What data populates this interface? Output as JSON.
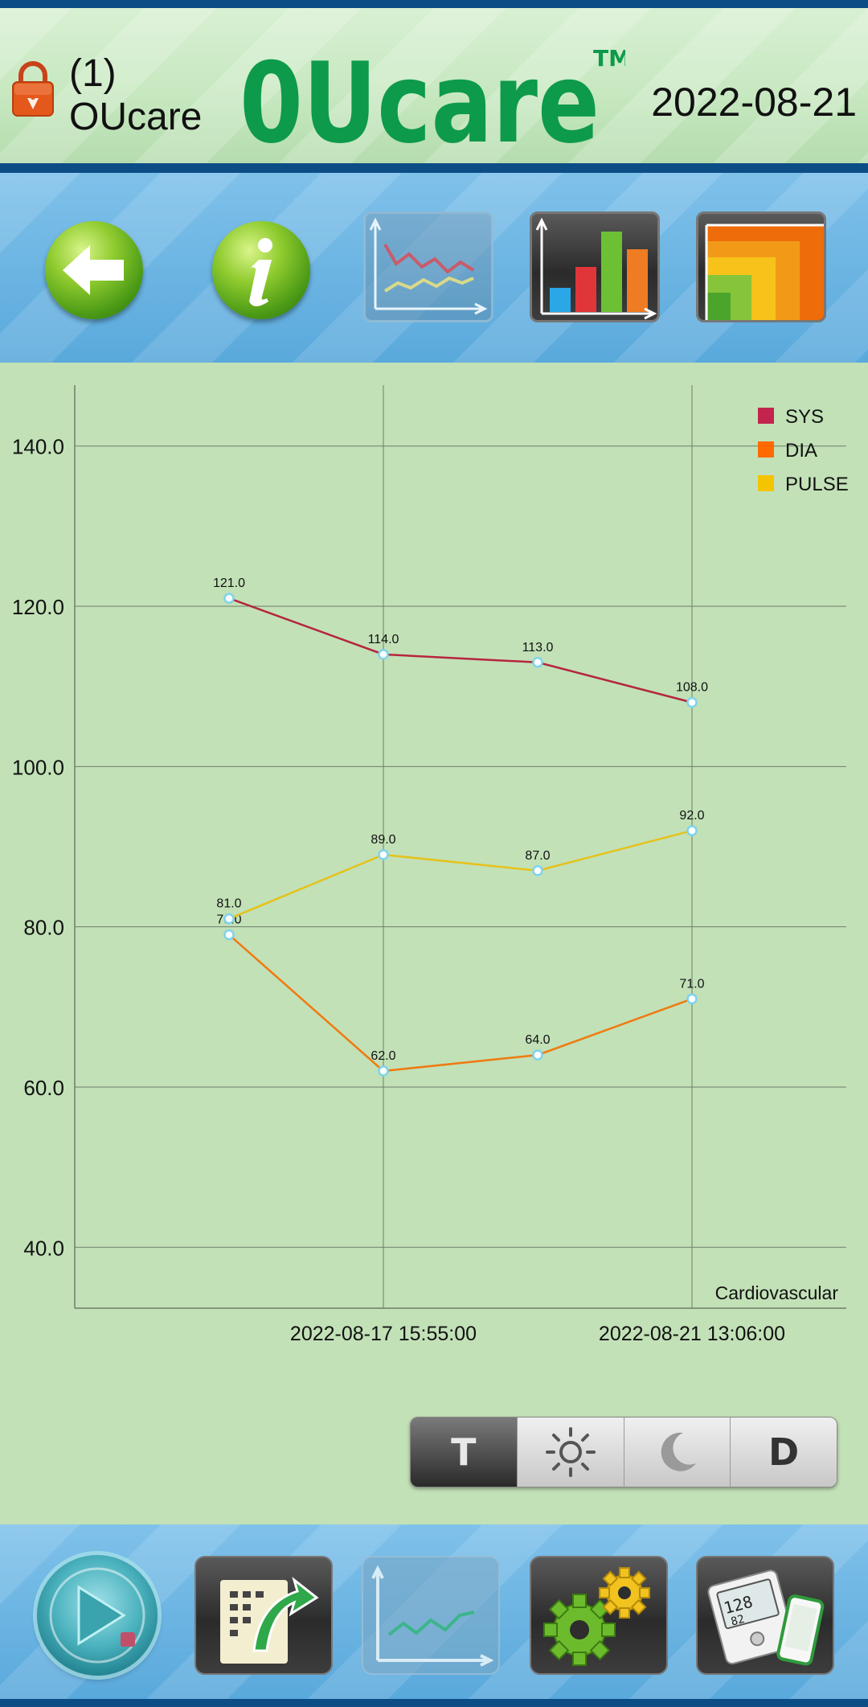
{
  "header": {
    "user_number": "(1)",
    "user_name": "OUcare",
    "logo_text": "0Ucare",
    "logo_tm": "TM",
    "date": "2022-08-21"
  },
  "toolbar": {
    "icons": [
      "back-arrow-icon",
      "info-icon",
      "line-chart-icon",
      "bar-chart-icon",
      "area-chart-icon"
    ]
  },
  "chart_data": {
    "type": "line",
    "categories": [
      "",
      "2022-08-17 15:55:00",
      "",
      "2022-08-21 13:06:00"
    ],
    "series": [
      {
        "name": "SYS",
        "color": "#c2244d",
        "line": "#b5263e",
        "values": [
          121.0,
          114.0,
          113.0,
          108.0
        ]
      },
      {
        "name": "DIA",
        "color": "#ff6a00",
        "line": "#f07a10",
        "values": [
          79.0,
          62.0,
          64.0,
          71.0
        ]
      },
      {
        "name": "PULSE",
        "color": "#f5c400",
        "line": "#e6c21a",
        "values": [
          81.0,
          89.0,
          87.0,
          92.0
        ]
      }
    ],
    "y_ticks": [
      "140.0",
      "120.0",
      "100.0",
      "80.0",
      "60.0",
      "40.0"
    ],
    "ylim": [
      32.4,
      147.6
    ],
    "annotation": "Cardiovascular",
    "legend_position": "top-right",
    "grid": true
  },
  "segments": {
    "items": [
      {
        "name": "total-segment",
        "label": "T"
      },
      {
        "name": "day-segment",
        "icon": "sun-icon"
      },
      {
        "name": "night-segment",
        "icon": "moon-icon"
      },
      {
        "name": "d-segment",
        "label": "D"
      }
    ]
  },
  "bottom_bar": {
    "icons": [
      "play-icon",
      "export-record-icon",
      "trend-chart-icon",
      "settings-gears-icon",
      "device-sync-icon"
    ]
  },
  "colors": {
    "header_border": "#0c4d86",
    "chart_background": "#c2e1b7",
    "logo_green": "#0d9a4b",
    "lock_orange": "#e4581c"
  }
}
